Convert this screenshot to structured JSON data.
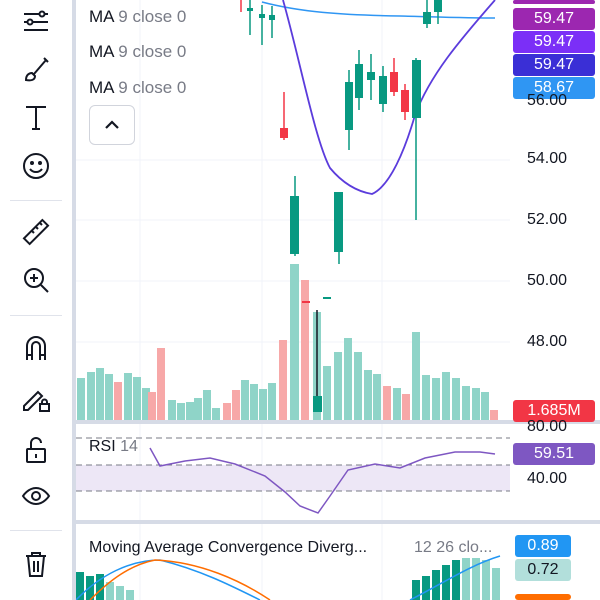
{
  "ma_labels": [
    {
      "name": "MA",
      "params": "9 close 0"
    },
    {
      "name": "MA",
      "params": "9 close 0"
    },
    {
      "name": "MA",
      "params": "9 close 0"
    }
  ],
  "price_badges": [
    {
      "value": "59.47",
      "color": "#9c27b0"
    },
    {
      "value": "59.47",
      "color": "#7b2ff7"
    },
    {
      "value": "59.47",
      "color": "#3a2fd6"
    },
    {
      "value": "58.67",
      "color": "#2f96f3"
    }
  ],
  "price_axis": [
    "56.00",
    "54.00",
    "52.00",
    "50.00",
    "48.00"
  ],
  "volume_badge": {
    "value": "1.685M",
    "color": "#f23645"
  },
  "rsi": {
    "title": "RSI",
    "param": "14",
    "value": "59.51",
    "axis": [
      "80.00",
      "40.00"
    ],
    "badge_color": "#7e57c2"
  },
  "macd": {
    "title": "Moving Average Convergence Diverg...",
    "params": "12 26 clo...",
    "value1": "0.89",
    "value2": "0.72",
    "color1": "#2196f3",
    "color2": "#26a69a"
  },
  "toolbar": [
    "trend-line-tool",
    "brush-tool",
    "text-tool",
    "emoji-tool",
    "ruler-tool",
    "zoom-in-tool",
    "magnet-tool",
    "lock-drawing-tool",
    "unlock-tool",
    "eye-tool",
    "trash-tool"
  ]
}
